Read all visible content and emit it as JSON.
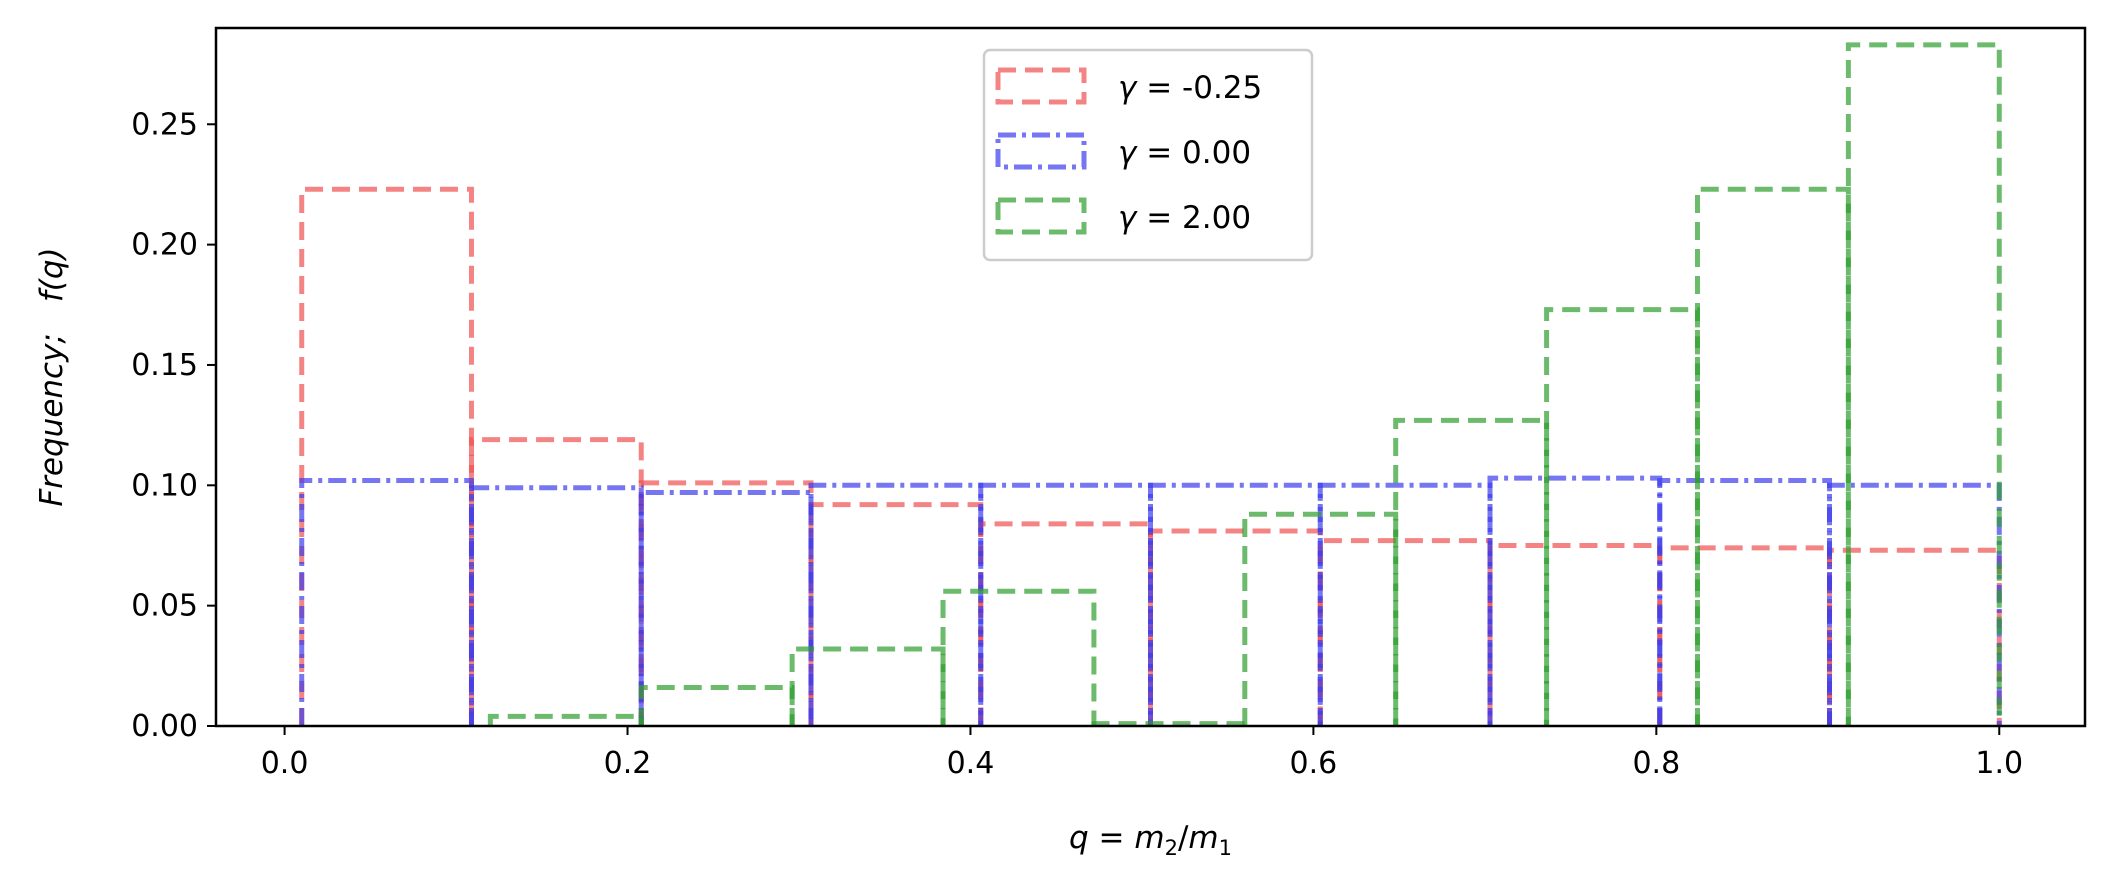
{
  "chart_data": {
    "type": "histogram",
    "title": "",
    "xlabel_parts": [
      "q",
      " = ",
      "m",
      "2",
      "/",
      "m",
      "1"
    ],
    "ylabel_parts": [
      "Frequency;",
      "f(q)"
    ],
    "xlim": [
      -0.04,
      1.05
    ],
    "ylim": [
      0,
      0.29
    ],
    "xticks": [
      "0.0",
      "0.2",
      "0.4",
      "0.6",
      "0.8",
      "1.0"
    ],
    "xtick_values": [
      0.0,
      0.2,
      0.4,
      0.6,
      0.8,
      1.0
    ],
    "yticks": [
      "0.00",
      "0.05",
      "0.10",
      "0.15",
      "0.20",
      "0.25"
    ],
    "ytick_values": [
      0.0,
      0.05,
      0.1,
      0.15,
      0.2,
      0.25
    ],
    "grid": false,
    "legend_position": "top-center",
    "series": [
      {
        "label_symbol": "γ",
        "label_value": "-0.25",
        "color": "#f05050",
        "linestyle": "dashed",
        "bin_edges": [
          0.01,
          0.109,
          0.208,
          0.307,
          0.406,
          0.505,
          0.604,
          0.703,
          0.802,
          0.901,
          1.0
        ],
        "values": [
          0.223,
          0.119,
          0.101,
          0.092,
          0.084,
          0.081,
          0.077,
          0.075,
          0.074,
          0.073
        ]
      },
      {
        "label_symbol": "γ",
        "label_value": "0.00",
        "color": "#3c3cee",
        "linestyle": "dashdot",
        "bin_edges": [
          0.01,
          0.109,
          0.208,
          0.307,
          0.406,
          0.505,
          0.604,
          0.703,
          0.802,
          0.901,
          1.0
        ],
        "values": [
          0.102,
          0.099,
          0.097,
          0.1,
          0.1,
          0.1,
          0.1,
          0.103,
          0.102,
          0.1
        ]
      },
      {
        "label_symbol": "γ",
        "label_value": "2.00",
        "color": "#2e9e2e",
        "linestyle": "dashed",
        "bin_edges": [
          0.12,
          0.208,
          0.296,
          0.384,
          0.472,
          0.56,
          0.648,
          0.736,
          0.824,
          0.912,
          1.0
        ],
        "values": [
          0.004,
          0.016,
          0.032,
          0.056,
          0.001,
          0.088,
          0.127,
          0.173,
          0.223,
          0.283
        ]
      }
    ]
  }
}
